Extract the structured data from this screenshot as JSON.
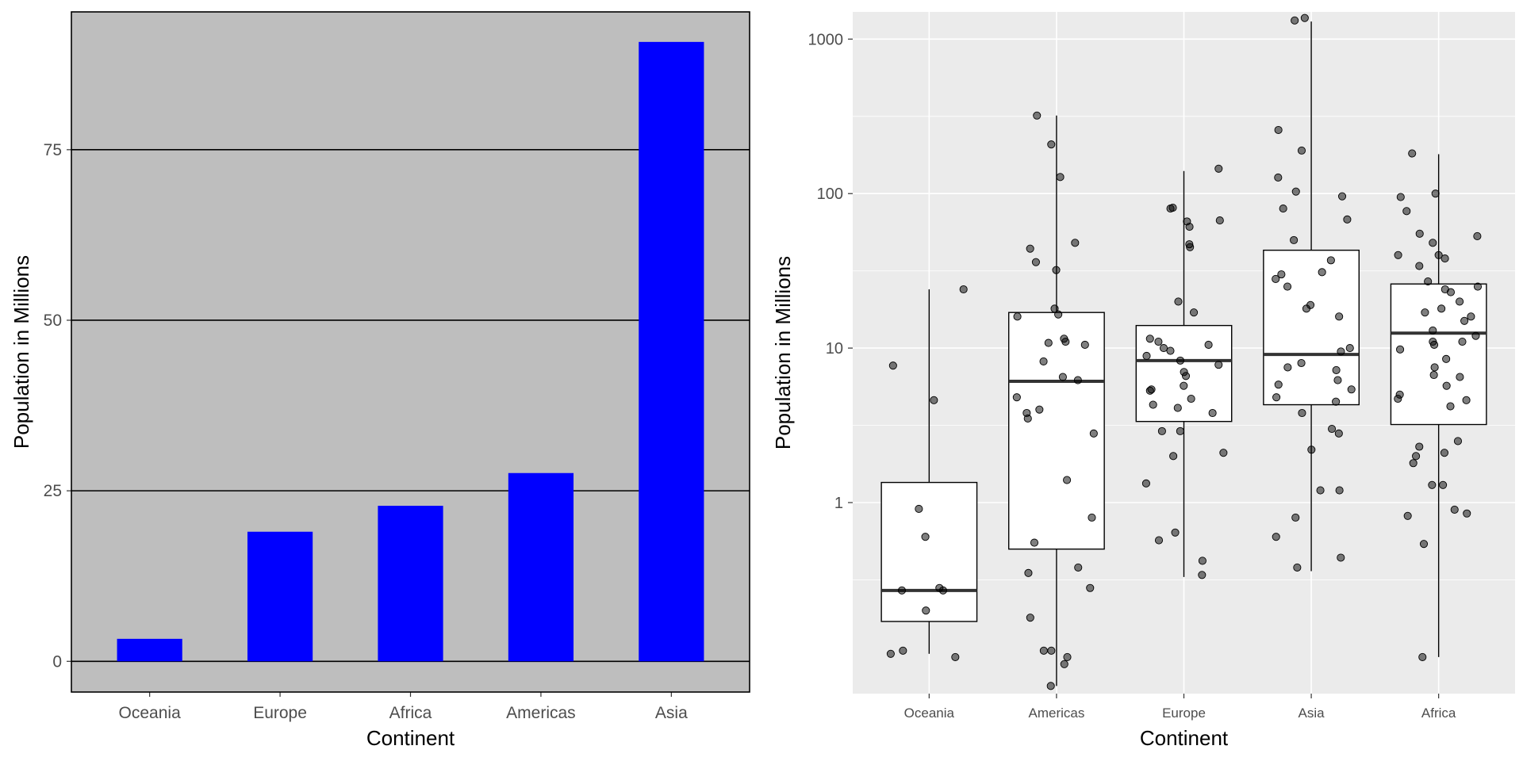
{
  "colors": {
    "bar_fill": "#0000ff",
    "left_panel_bg": "#bebebe",
    "right_panel_bg": "#ebebeb",
    "grid_right": "#ffffff",
    "grid_left": "#000000",
    "point_fill": "#000000"
  },
  "chart_data": [
    {
      "type": "bar",
      "title": "",
      "xlabel": "Continent",
      "ylabel": "Population in Millions",
      "categories": [
        "Oceania",
        "Europe",
        "Africa",
        "Americas",
        "Asia"
      ],
      "values": [
        3.3,
        19.0,
        22.8,
        27.6,
        90.8
      ],
      "ylim": [
        -4.5,
        95.2
      ],
      "yticks": [
        0,
        25,
        50,
        75
      ],
      "ytick_labels": [
        "0",
        "25",
        "50",
        "75"
      ],
      "grid": "horizontal at major ticks"
    },
    {
      "type": "box",
      "title": "",
      "xlabel": "Continent",
      "ylabel": "Population in Millions",
      "yscale": "log10",
      "ylim": [
        0.058,
        1500
      ],
      "yticks": [
        1,
        10,
        100,
        1000
      ],
      "ytick_labels": [
        "1",
        "10",
        "100",
        "1000"
      ],
      "minor_gridlines": [
        0.316,
        3.16,
        31.6,
        316
      ],
      "categories": [
        "Oceania",
        "Americas",
        "Europe",
        "Asia",
        "Africa"
      ],
      "boxes": [
        {
          "category": "Oceania",
          "q1": 0.17,
          "median": 0.27,
          "q3": 1.35,
          "whisker_low": 0.105,
          "whisker_high": 24
        },
        {
          "category": "Americas",
          "q1": 0.5,
          "median": 6.1,
          "q3": 17,
          "whisker_low": 0.065,
          "whisker_high": 320
        },
        {
          "category": "Europe",
          "q1": 3.35,
          "median": 8.3,
          "q3": 14,
          "whisker_low": 0.33,
          "whisker_high": 140
        },
        {
          "category": "Asia",
          "q1": 4.3,
          "median": 9.1,
          "q3": 43,
          "whisker_low": 0.36,
          "whisker_high": 1300
        },
        {
          "category": "Africa",
          "q1": 3.2,
          "median": 12.5,
          "q3": 26,
          "whisker_low": 0.1,
          "whisker_high": 180
        }
      ],
      "points": [
        {
          "category": "Oceania",
          "values": [
            24,
            7.7,
            4.6,
            0.91,
            0.6,
            0.28,
            0.27,
            0.27,
            0.2,
            0.105,
            0.11,
            0.1
          ]
        },
        {
          "category": "Americas",
          "values": [
            320,
            208,
            128,
            48,
            44,
            36,
            32,
            18,
            16.5,
            16,
            11.5,
            11,
            10.8,
            10.5,
            8.2,
            6.5,
            6.2,
            4.8,
            4,
            3.8,
            3.5,
            2.8,
            1.4,
            0.8,
            0.55,
            0.38,
            0.35,
            0.28,
            0.18,
            0.11,
            0.11,
            0.1,
            0.09,
            0.065
          ]
        },
        {
          "category": "Europe",
          "values": [
            145,
            81,
            80,
            67,
            66,
            61,
            47,
            45,
            20,
            17,
            11.5,
            11,
            10.5,
            10,
            9.6,
            8.9,
            8.3,
            7.8,
            7,
            6.6,
            5.7,
            5.4,
            5.3,
            4.7,
            4.3,
            4.1,
            3.8,
            2.9,
            2.9,
            2.1,
            2,
            1.33,
            0.64,
            0.57,
            0.42,
            0.34
          ]
        },
        {
          "category": "Asia",
          "values": [
            1370,
            1320,
            258,
            190,
            127,
            103,
            96,
            80,
            68,
            50,
            37,
            31,
            30,
            28,
            25,
            19,
            18,
            16,
            10,
            9.5,
            8,
            7.5,
            7.2,
            6.2,
            5.8,
            5.4,
            4.8,
            4.5,
            3.8,
            3,
            2.8,
            2.2,
            1.2,
            1.2,
            0.8,
            0.6,
            0.44,
            0.38
          ]
        },
        {
          "category": "Africa",
          "values": [
            182,
            100,
            95,
            77,
            55,
            53,
            48,
            40,
            40,
            38,
            34,
            27,
            25,
            24,
            23,
            20,
            18,
            17,
            16,
            15,
            13,
            12,
            11,
            11,
            10.5,
            9.8,
            8.5,
            7.5,
            6.7,
            6.5,
            5.7,
            5,
            4.7,
            4.6,
            4.2,
            2.5,
            2.3,
            2.1,
            2,
            1.8,
            1.3,
            1.3,
            0.9,
            0.85,
            0.82,
            0.54,
            0.1
          ]
        }
      ],
      "grid": "major and minor horizontal, vertical at categories"
    }
  ]
}
